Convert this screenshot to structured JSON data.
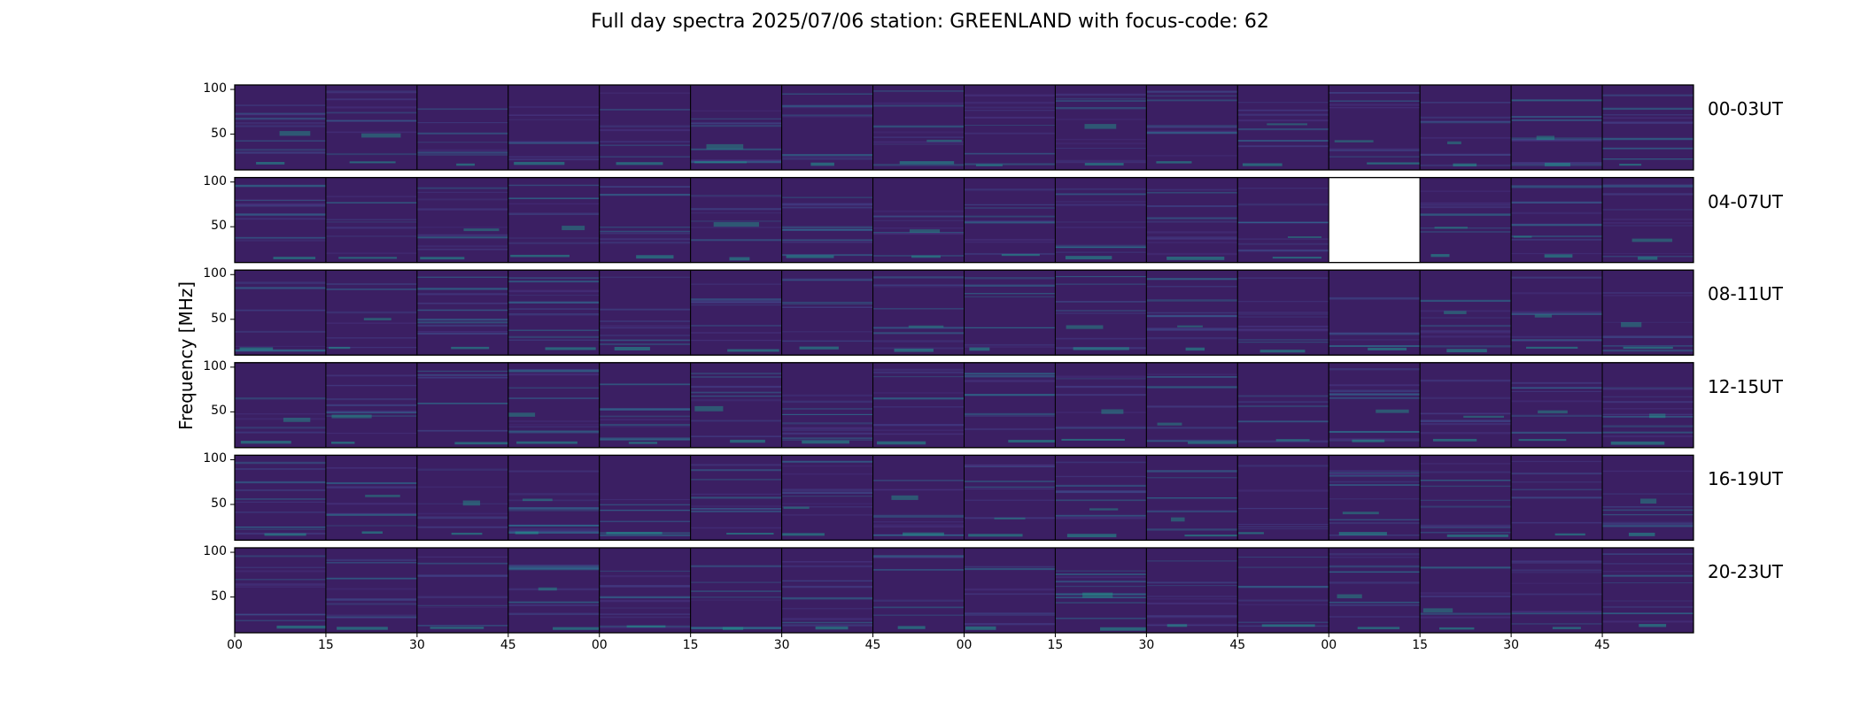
{
  "title": "Full day spectra 2025/07/06 station: GREENLAND with focus-code: 62",
  "chart_data": {
    "type": "heatmap",
    "title": "Full day spectra 2025/07/06 station: GREENLAND with focus-code: 62",
    "ylabel": "Frequency [MHz]",
    "xlabel": "",
    "ylim": [
      10,
      105
    ],
    "yticks": [
      "100",
      "50"
    ],
    "xticks": [
      "00",
      "15",
      "30",
      "45",
      "00",
      "15",
      "30",
      "45",
      "00",
      "15",
      "30",
      "45",
      "00",
      "15",
      "30",
      "45"
    ],
    "panels_per_row": 16,
    "colormap": "viridis",
    "background_color": "#3b1f63",
    "rows": [
      {
        "label": "00-03UT",
        "missing_panels": []
      },
      {
        "label": "04-07UT",
        "missing_panels": [
          12
        ]
      },
      {
        "label": "08-11UT",
        "missing_panels": []
      },
      {
        "label": "12-15UT",
        "missing_panels": []
      },
      {
        "label": "16-19UT",
        "missing_panels": []
      },
      {
        "label": "20-23UT",
        "missing_panels": []
      }
    ]
  }
}
